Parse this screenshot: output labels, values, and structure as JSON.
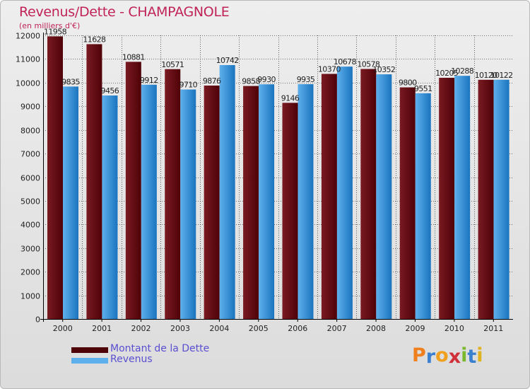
{
  "colors": {
    "debt": "#7a1a22",
    "debt_dark": "#4e0207",
    "revenue": "#5eb0ec",
    "revenue_dark": "#1a74be",
    "title": "#c0235a",
    "legend_text": "#5a4fd0",
    "grid": "#000000"
  },
  "chart_data": {
    "type": "bar",
    "title": "Revenus/Dette - CHAMPAGNOLE",
    "subtitle": "(en milliers d'€)",
    "categories": [
      "2000",
      "2001",
      "2002",
      "2003",
      "2004",
      "2005",
      "2006",
      "2007",
      "2008",
      "2009",
      "2010",
      "2011"
    ],
    "series": [
      {
        "name": "Montant de la Dette",
        "values": [
          11958,
          11628,
          10881,
          10571,
          9876,
          9858,
          9146,
          10370,
          10578,
          9800,
          10205,
          10120
        ]
      },
      {
        "name": "Revenus",
        "values": [
          9835,
          9456,
          9912,
          9710,
          10742,
          9930,
          9935,
          10678,
          10352,
          9551,
          10288,
          10122
        ]
      }
    ],
    "ylim": [
      0,
      12000
    ],
    "yticks": [
      0,
      1000,
      2000,
      3000,
      4000,
      5000,
      6000,
      7000,
      8000,
      9000,
      10000,
      11000,
      12000
    ],
    "grid": true,
    "legend": "bottom-left"
  },
  "logo": {
    "letters": [
      "P",
      "r",
      "o",
      "x",
      "i",
      "t",
      "i"
    ],
    "colors": [
      "#f07f1e",
      "#3b7fd0",
      "#f0a01e",
      "#d0303a",
      "#7ab82e",
      "#3b7fd0",
      "#e0b21e"
    ]
  }
}
